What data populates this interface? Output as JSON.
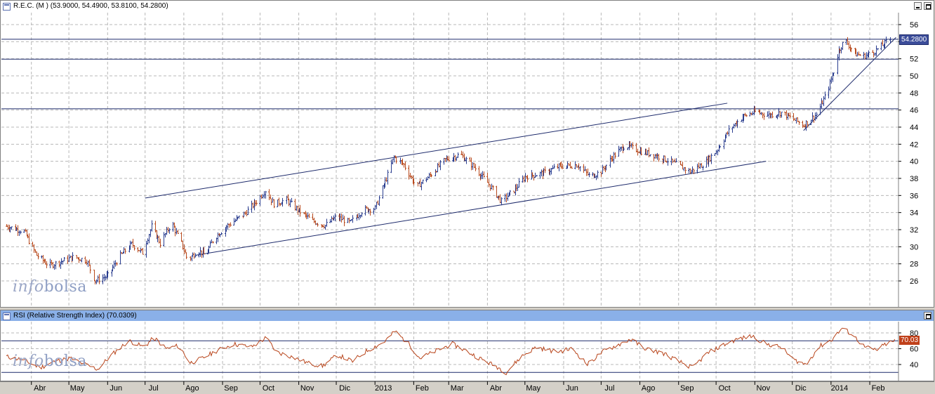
{
  "price_panel": {
    "title": "R.E.C. (M ) (53.9000, 54.4900, 53.8100, 54.2800)",
    "last_value_label": "54.2800",
    "watermark_light": "info",
    "watermark_dark": "bolsa"
  },
  "rsi_panel": {
    "title": "RSI (Relative Strength Index) (70.0309)",
    "last_value_label": "70.03",
    "watermark_light": "info",
    "watermark_dark": "bolsa"
  },
  "colors": {
    "up_bar": "#2a3d8f",
    "down_bar": "#b84a1e",
    "trendline": "#1d2a6b",
    "rsi_line": "#b8441a",
    "rsi_title_bg": "#8ab0e8",
    "last_value_bg": "#3c4d9a",
    "rsi_value_bg": "#c0401a"
  },
  "chart_data": [
    {
      "type": "ohlc",
      "title": "R.E.C. (M ) (53.9000, 54.4900, 53.8100, 54.2800)",
      "ylim": [
        24,
        57
      ],
      "yticks": [
        26,
        28,
        30,
        32,
        34,
        36,
        38,
        40,
        42,
        44,
        46,
        48,
        50,
        52,
        54,
        56
      ],
      "grid": true,
      "x_labels": [
        "Abr",
        "May",
        "Jun",
        "Jul",
        "Ago",
        "Sep",
        "Oct",
        "Nov",
        "Dic",
        "2013",
        "Feb",
        "Mar",
        "Abr",
        "May",
        "Jun",
        "Jul",
        "Ago",
        "Sep",
        "Oct",
        "Nov",
        "Dic",
        "2014",
        "Feb"
      ],
      "close_path": [
        [
          "2012-03-12",
          32.4
        ],
        [
          "2012-03-26",
          31.8
        ],
        [
          "2012-04-05",
          29.0
        ],
        [
          "2012-04-15",
          27.8
        ],
        [
          "2012-04-25",
          28.3
        ],
        [
          "2012-05-05",
          28.8
        ],
        [
          "2012-05-15",
          28.4
        ],
        [
          "2012-05-22",
          26.0
        ],
        [
          "2012-06-01",
          26.6
        ],
        [
          "2012-06-10",
          28.8
        ],
        [
          "2012-06-20",
          30.3
        ],
        [
          "2012-06-29",
          29.3
        ],
        [
          "2012-07-06",
          32.4
        ],
        [
          "2012-07-13",
          30.4
        ],
        [
          "2012-07-22",
          32.8
        ],
        [
          "2012-07-30",
          30.4
        ],
        [
          "2012-08-04",
          28.4
        ],
        [
          "2012-08-12",
          29.6
        ],
        [
          "2012-08-18",
          29.0
        ],
        [
          "2012-08-25",
          31.0
        ],
        [
          "2012-09-05",
          32.5
        ],
        [
          "2012-09-18",
          33.8
        ],
        [
          "2012-09-28",
          35.3
        ],
        [
          "2012-10-05",
          36.6
        ],
        [
          "2012-10-12",
          35.0
        ],
        [
          "2012-10-22",
          35.5
        ],
        [
          "2012-11-01",
          34.2
        ],
        [
          "2012-11-12",
          33.0
        ],
        [
          "2012-11-22",
          32.5
        ],
        [
          "2012-12-01",
          33.5
        ],
        [
          "2012-12-12",
          32.8
        ],
        [
          "2012-12-22",
          34.3
        ],
        [
          "2013-01-01",
          34.5
        ],
        [
          "2013-01-10",
          38.0
        ],
        [
          "2013-01-16",
          40.5
        ],
        [
          "2013-01-24",
          39.6
        ],
        [
          "2013-02-03",
          37.0
        ],
        [
          "2013-02-15",
          38.5
        ],
        [
          "2013-02-26",
          40.2
        ],
        [
          "2013-03-10",
          40.8
        ],
        [
          "2013-03-20",
          39.5
        ],
        [
          "2013-04-01",
          37.5
        ],
        [
          "2013-04-12",
          35.3
        ],
        [
          "2013-04-22",
          36.6
        ],
        [
          "2013-05-01",
          38.2
        ],
        [
          "2013-05-15",
          38.6
        ],
        [
          "2013-05-28",
          39.4
        ],
        [
          "2013-06-12",
          39.6
        ],
        [
          "2013-06-22",
          38.2
        ],
        [
          "2013-07-01",
          38.8
        ],
        [
          "2013-07-10",
          40.5
        ],
        [
          "2013-07-20",
          41.9
        ],
        [
          "2013-08-01",
          41.2
        ],
        [
          "2013-08-15",
          40.6
        ],
        [
          "2013-08-28",
          39.8
        ],
        [
          "2013-09-10",
          38.8
        ],
        [
          "2013-09-22",
          39.8
        ],
        [
          "2013-10-01",
          41.2
        ],
        [
          "2013-10-12",
          43.8
        ],
        [
          "2013-10-22",
          45.2
        ],
        [
          "2013-11-01",
          45.8
        ],
        [
          "2013-11-12",
          45.4
        ],
        [
          "2013-11-22",
          45.7
        ],
        [
          "2013-12-01",
          45.0
        ],
        [
          "2013-12-10",
          44.2
        ],
        [
          "2013-12-20",
          45.5
        ],
        [
          "2013-12-28",
          47.8
        ],
        [
          "2014-01-03",
          50.5
        ],
        [
          "2014-01-07",
          53.0
        ],
        [
          "2014-01-12",
          54.2
        ],
        [
          "2014-01-20",
          52.6
        ],
        [
          "2014-01-27",
          52.3
        ],
        [
          "2014-02-05",
          52.9
        ],
        [
          "2014-02-17",
          54.28
        ]
      ],
      "horizontal_lines": [
        54.28,
        51.95,
        46.15
      ],
      "trend_lines": [
        [
          [
            "2012-07-01",
            35.7
          ],
          [
            "2013-10-10",
            46.8
          ]
        ],
        [
          [
            "2012-08-10",
            29.0
          ],
          [
            "2013-11-10",
            40.0
          ]
        ],
        [
          [
            "2013-12-10",
            43.6
          ],
          [
            "2014-02-22",
            54.5
          ]
        ]
      ],
      "last_close": 54.28
    },
    {
      "type": "line",
      "title": "RSI (Relative Strength Index) (70.0309)",
      "ylim": [
        28,
        92
      ],
      "yticks": [
        40,
        60,
        80
      ],
      "reference_lines": [
        70,
        30
      ],
      "series": [
        {
          "values": [
            [
              "2012-03-12",
              50
            ],
            [
              "2012-03-25",
              46
            ],
            [
              "2012-04-08",
              36
            ],
            [
              "2012-04-20",
              44
            ],
            [
              "2012-05-02",
              48
            ],
            [
              "2012-05-14",
              40
            ],
            [
              "2012-05-24",
              34
            ],
            [
              "2012-06-04",
              52
            ],
            [
              "2012-06-18",
              70
            ],
            [
              "2012-06-30",
              62
            ],
            [
              "2012-07-08",
              74
            ],
            [
              "2012-07-18",
              60
            ],
            [
              "2012-07-28",
              64
            ],
            [
              "2012-08-06",
              42
            ],
            [
              "2012-08-16",
              48
            ],
            [
              "2012-08-28",
              58
            ],
            [
              "2012-09-10",
              66
            ],
            [
              "2012-09-24",
              62
            ],
            [
              "2012-10-06",
              74
            ],
            [
              "2012-10-14",
              56
            ],
            [
              "2012-10-26",
              50
            ],
            [
              "2012-11-08",
              42
            ],
            [
              "2012-11-20",
              38
            ],
            [
              "2012-12-02",
              52
            ],
            [
              "2012-12-14",
              44
            ],
            [
              "2012-12-26",
              58
            ],
            [
              "2013-01-08",
              68
            ],
            [
              "2013-01-17",
              82
            ],
            [
              "2013-01-28",
              66
            ],
            [
              "2013-02-06",
              48
            ],
            [
              "2013-02-20",
              58
            ],
            [
              "2013-03-04",
              66
            ],
            [
              "2013-03-14",
              58
            ],
            [
              "2013-03-28",
              46
            ],
            [
              "2013-04-10",
              36
            ],
            [
              "2013-04-16",
              30
            ],
            [
              "2013-04-28",
              50
            ],
            [
              "2013-05-10",
              62
            ],
            [
              "2013-05-26",
              56
            ],
            [
              "2013-06-08",
              60
            ],
            [
              "2013-06-20",
              40
            ],
            [
              "2013-07-02",
              56
            ],
            [
              "2013-07-16",
              66
            ],
            [
              "2013-07-24",
              72
            ],
            [
              "2013-08-06",
              60
            ],
            [
              "2013-08-20",
              54
            ],
            [
              "2013-09-01",
              44
            ],
            [
              "2013-09-12",
              36
            ],
            [
              "2013-09-24",
              54
            ],
            [
              "2013-10-06",
              64
            ],
            [
              "2013-10-18",
              72
            ],
            [
              "2013-10-30",
              76
            ],
            [
              "2013-11-10",
              66
            ],
            [
              "2013-11-22",
              62
            ],
            [
              "2013-12-02",
              46
            ],
            [
              "2013-12-12",
              40
            ],
            [
              "2013-12-22",
              62
            ],
            [
              "2014-01-02",
              72
            ],
            [
              "2014-01-10",
              86
            ],
            [
              "2014-01-18",
              78
            ],
            [
              "2014-01-28",
              62
            ],
            [
              "2014-02-06",
              58
            ],
            [
              "2014-02-14",
              66
            ],
            [
              "2014-02-21",
              70.03
            ]
          ]
        }
      ],
      "last_value": 70.03
    }
  ]
}
